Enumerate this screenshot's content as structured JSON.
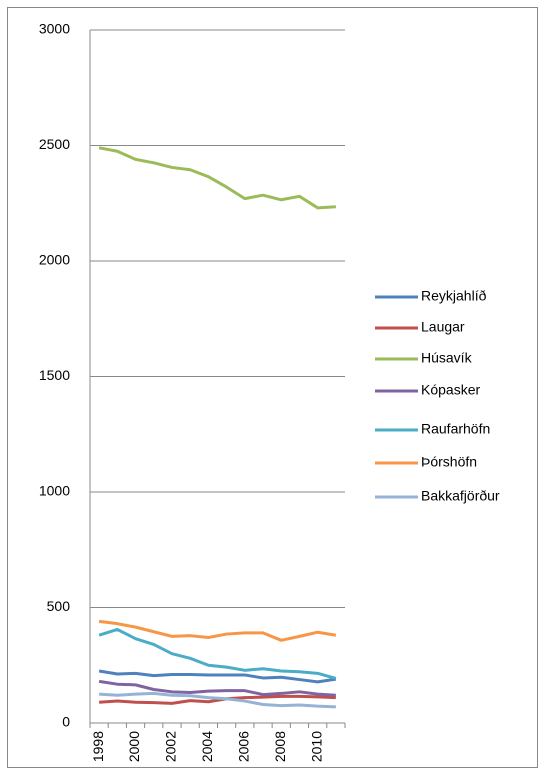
{
  "chart_data": {
    "type": "line",
    "categories": [
      "1998",
      null,
      "2000",
      null,
      "2002",
      null,
      "2004",
      null,
      "2006",
      null,
      "2008",
      null,
      "2010",
      null
    ],
    "series": [
      {
        "name": "Reykjahlíð",
        "color": "#4f81bd",
        "values": [
          225,
          212,
          215,
          205,
          210,
          210,
          208,
          208,
          208,
          195,
          198,
          188,
          178,
          190
        ]
      },
      {
        "name": "Laugar",
        "color": "#c0504d",
        "values": [
          90,
          95,
          90,
          88,
          85,
          97,
          92,
          105,
          110,
          112,
          115,
          115,
          113,
          110
        ]
      },
      {
        "name": "Húsavík",
        "color": "#9bbb59",
        "values": [
          2490,
          2475,
          2440,
          2425,
          2405,
          2395,
          2365,
          2320,
          2270,
          2285,
          2265,
          2280,
          2230,
          2235
        ]
      },
      {
        "name": "Kópasker",
        "color": "#8064a2",
        "values": [
          180,
          168,
          165,
          145,
          135,
          132,
          138,
          140,
          140,
          123,
          128,
          135,
          125,
          120
        ]
      },
      {
        "name": "Raufarhöfn",
        "color": "#4bacc6",
        "values": [
          380,
          405,
          365,
          340,
          300,
          280,
          250,
          242,
          228,
          235,
          225,
          222,
          215,
          193
        ]
      },
      {
        "name": "Þórshöfn",
        "color": "#f79646",
        "values": [
          440,
          430,
          415,
          395,
          375,
          378,
          370,
          385,
          390,
          390,
          358,
          375,
          393,
          380
        ]
      },
      {
        "name": "Bakkafjörður",
        "color": "#95b3d7",
        "values": [
          125,
          120,
          125,
          128,
          120,
          118,
          110,
          105,
          95,
          80,
          75,
          78,
          73,
          70
        ]
      }
    ],
    "ylim": [
      0,
      3000
    ],
    "yticks": [
      0,
      500,
      1000,
      1500,
      2000,
      2500,
      3000
    ],
    "grid": true,
    "legend": "right"
  }
}
